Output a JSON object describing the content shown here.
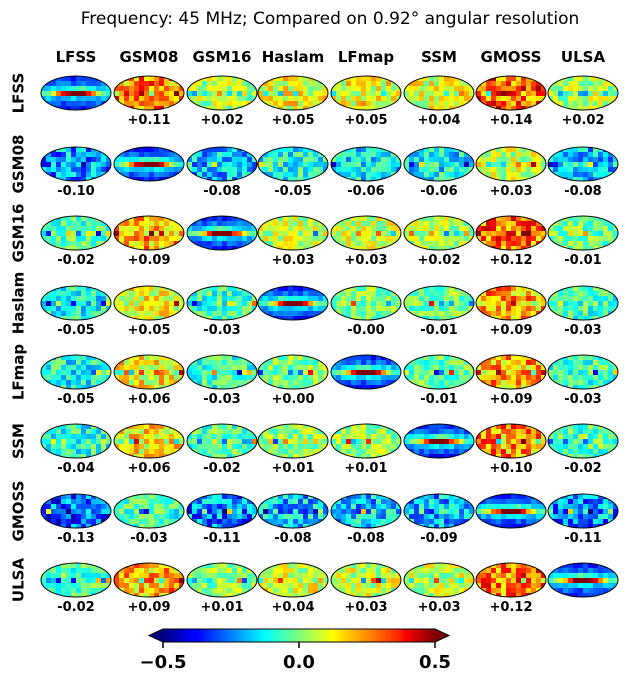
{
  "chart_data": {
    "type": "heatmap",
    "title": "Frequency: 45 MHz; Compared on 0.92° angular resolution",
    "models": [
      "LFSS",
      "GSM08",
      "GSM16",
      "Haslam",
      "LFmap",
      "SSM",
      "GMOSS",
      "ULSA"
    ],
    "matrix": [
      [
        "",
        "+0.11",
        "+0.02",
        "+0.05",
        "+0.05",
        "+0.04",
        "+0.14",
        "+0.02"
      ],
      [
        "-0.10",
        "",
        "-0.08",
        "-0.05",
        "-0.06",
        "-0.06",
        "+0.03",
        "-0.08"
      ],
      [
        "-0.02",
        "+0.09",
        "",
        "+0.03",
        "+0.03",
        "+0.02",
        "+0.12",
        "-0.01"
      ],
      [
        "-0.05",
        "+0.05",
        "-0.03",
        "",
        "-0.00",
        "-0.01",
        "+0.09",
        "-0.03"
      ],
      [
        "-0.05",
        "+0.06",
        "-0.03",
        "+0.00",
        "",
        "-0.01",
        "+0.09",
        "-0.03"
      ],
      [
        "-0.04",
        "+0.06",
        "-0.02",
        "+0.01",
        "+0.01",
        "",
        "+0.10",
        "-0.02"
      ],
      [
        "-0.13",
        "-0.03",
        "-0.11",
        "-0.08",
        "-0.08",
        "-0.09",
        "",
        "-0.11"
      ],
      [
        "-0.02",
        "+0.09",
        "+0.01",
        "+0.04",
        "+0.03",
        "+0.03",
        "+0.12",
        ""
      ]
    ],
    "colorbar": {
      "colormap": "jet",
      "range": [
        -0.5,
        0.5
      ],
      "ticks": [
        "−0.5",
        "0.0",
        "0.5"
      ],
      "extend": "both"
    }
  }
}
